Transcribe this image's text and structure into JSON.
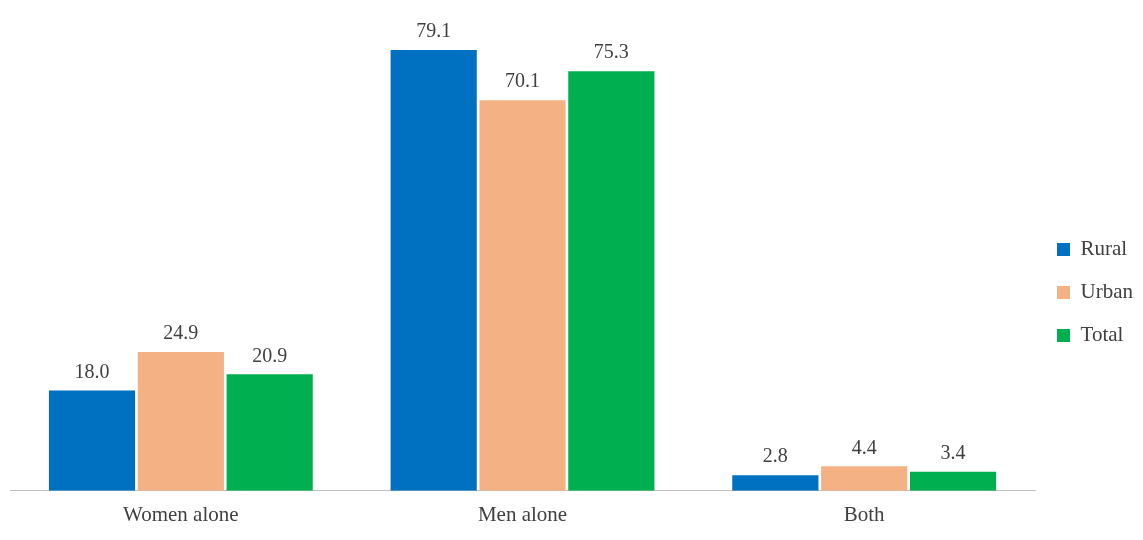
{
  "chart_data": {
    "type": "bar",
    "categories": [
      "Women alone",
      "Men alone",
      "Both"
    ],
    "series": [
      {
        "name": "Rural",
        "color": "#0070c0",
        "values": [
          18.0,
          79.1,
          2.8
        ],
        "value_labels": [
          "18.0",
          "79.1",
          "2.8"
        ]
      },
      {
        "name": "Urban",
        "color": "#f4b183",
        "values": [
          24.9,
          70.1,
          4.4
        ],
        "value_labels": [
          "24.9",
          "70.1",
          "4.4"
        ]
      },
      {
        "name": "Total",
        "color": "#00b050",
        "values": [
          20.9,
          75.3,
          3.4
        ],
        "value_labels": [
          "20.9",
          "75.3",
          "3.4"
        ]
      }
    ],
    "legend": "right"
  }
}
